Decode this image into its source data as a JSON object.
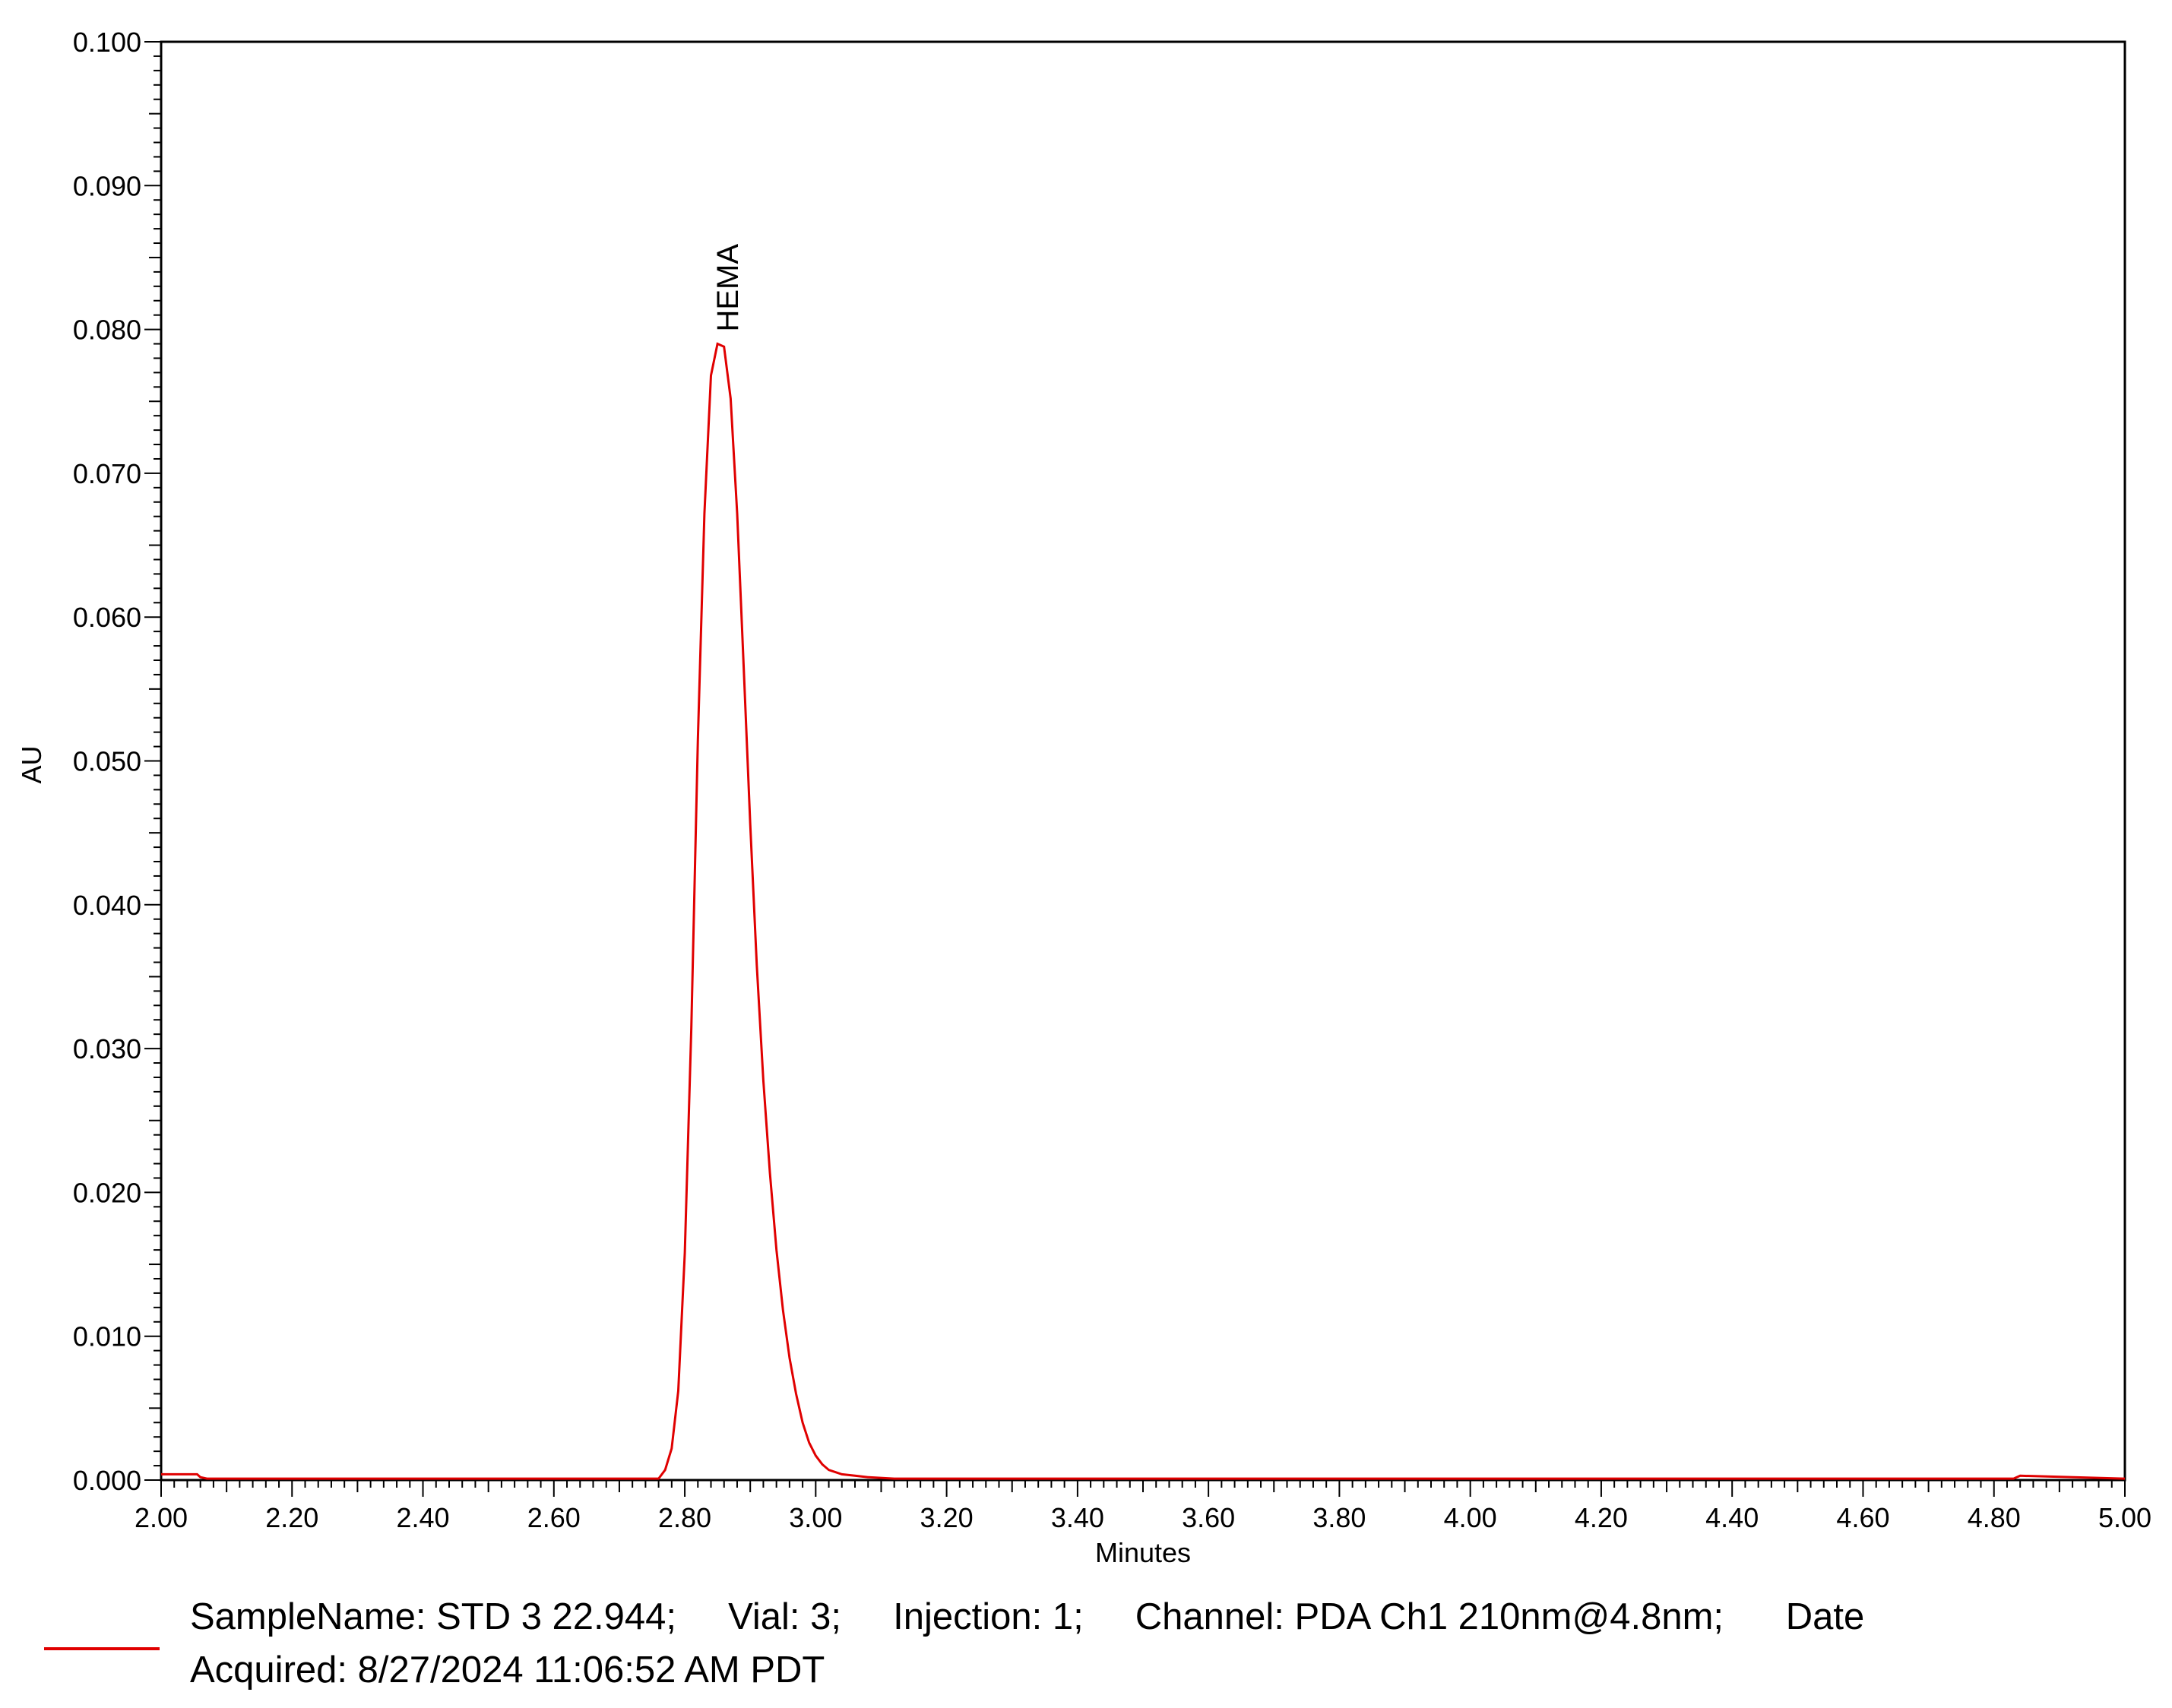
{
  "chart_data": {
    "type": "line",
    "xlabel": "Minutes",
    "ylabel": "AU",
    "xlim": [
      2.0,
      5.0
    ],
    "ylim": [
      0.0,
      0.1
    ],
    "x_major_ticks": [
      "2.00",
      "2.20",
      "2.40",
      "2.60",
      "2.80",
      "3.00",
      "3.20",
      "3.40",
      "3.60",
      "3.80",
      "4.00",
      "4.20",
      "4.40",
      "4.60",
      "4.80",
      "5.00"
    ],
    "y_major_ticks": [
      "0.000",
      "0.010",
      "0.020",
      "0.030",
      "0.040",
      "0.050",
      "0.060",
      "0.070",
      "0.080",
      "0.090",
      "0.100"
    ],
    "grid": false,
    "series": [
      {
        "color": "#e00000",
        "x": [
          2.0,
          2.055,
          2.06,
          2.07,
          2.2,
          2.4,
          2.6,
          2.76,
          2.77,
          2.78,
          2.79,
          2.8,
          2.81,
          2.82,
          2.83,
          2.84,
          2.85,
          2.86,
          2.87,
          2.88,
          2.89,
          2.9,
          2.91,
          2.92,
          2.93,
          2.94,
          2.95,
          2.96,
          2.97,
          2.98,
          2.99,
          3.0,
          3.01,
          3.02,
          3.04,
          3.06,
          3.08,
          3.12,
          3.2,
          3.6,
          4.0,
          4.4,
          4.83,
          4.84,
          5.0
        ],
        "y": [
          0.0004,
          0.0004,
          0.0002,
          0.0001,
          0.0001,
          0.0001,
          0.0001,
          0.0001,
          0.0007,
          0.0022,
          0.0062,
          0.0158,
          0.0315,
          0.0515,
          0.0672,
          0.0768,
          0.079,
          0.0788,
          0.0752,
          0.0672,
          0.0565,
          0.0456,
          0.0358,
          0.0278,
          0.0214,
          0.016,
          0.0118,
          0.0085,
          0.006,
          0.004,
          0.0026,
          0.0017,
          0.0011,
          0.0007,
          0.0004,
          0.0003,
          0.0002,
          0.0001,
          0.0001,
          0.0001,
          0.0001,
          0.0001,
          0.0001,
          0.0003,
          0.0001
        ]
      }
    ],
    "annotations": [
      {
        "text": "HEMA",
        "x": 2.865,
        "y": 0.079,
        "rotation": "vertical"
      }
    ],
    "legend": {
      "placement": "bottom",
      "entry": "SampleName: STD 3 22.944;     Vial: 3;     Injection: 1;     Channel: PDA Ch1 210nm@4.8nm;      Date\nAcquired: 8/27/2024 11:06:52 AM PDT"
    }
  }
}
